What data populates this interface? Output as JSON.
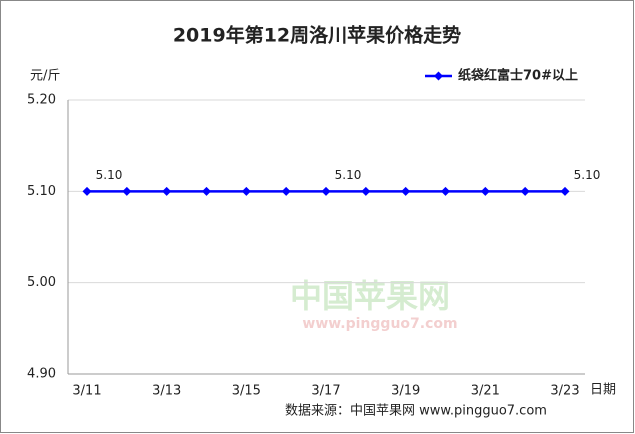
{
  "chart_data": {
    "type": "line",
    "title": "2019年第12周洛川苹果价格走势",
    "y_unit": "元/斤",
    "x_label": "日期",
    "source": "数据来源：中国苹果网 www.pingguo7.com",
    "watermark": "中国苹果网",
    "watermark_url": "www.pingguo7.com",
    "categories": [
      "3/11",
      null,
      "3/13",
      null,
      "3/15",
      null,
      "3/17",
      null,
      "3/19",
      null,
      "3/21",
      null,
      "3/23"
    ],
    "series": [
      {
        "name": "纸袋红富士70#以上",
        "color": "#0000ff",
        "values": [
          5.1,
          5.1,
          5.1,
          5.1,
          5.1,
          5.1,
          5.1,
          5.1,
          5.1,
          5.1,
          5.1,
          5.1,
          5.1
        ],
        "value_labels": [
          "5.10",
          null,
          null,
          null,
          null,
          null,
          "5.10",
          null,
          null,
          null,
          null,
          null,
          "5.10"
        ]
      }
    ],
    "ylim": [
      4.9,
      5.2
    ],
    "yticks": [
      {
        "value": 4.9,
        "label": "4.90"
      },
      {
        "value": 5.0,
        "label": "5.00"
      },
      {
        "value": 5.1,
        "label": "5.10"
      },
      {
        "value": 5.2,
        "label": "5.20"
      }
    ],
    "grid": true,
    "legend": "top-right"
  }
}
